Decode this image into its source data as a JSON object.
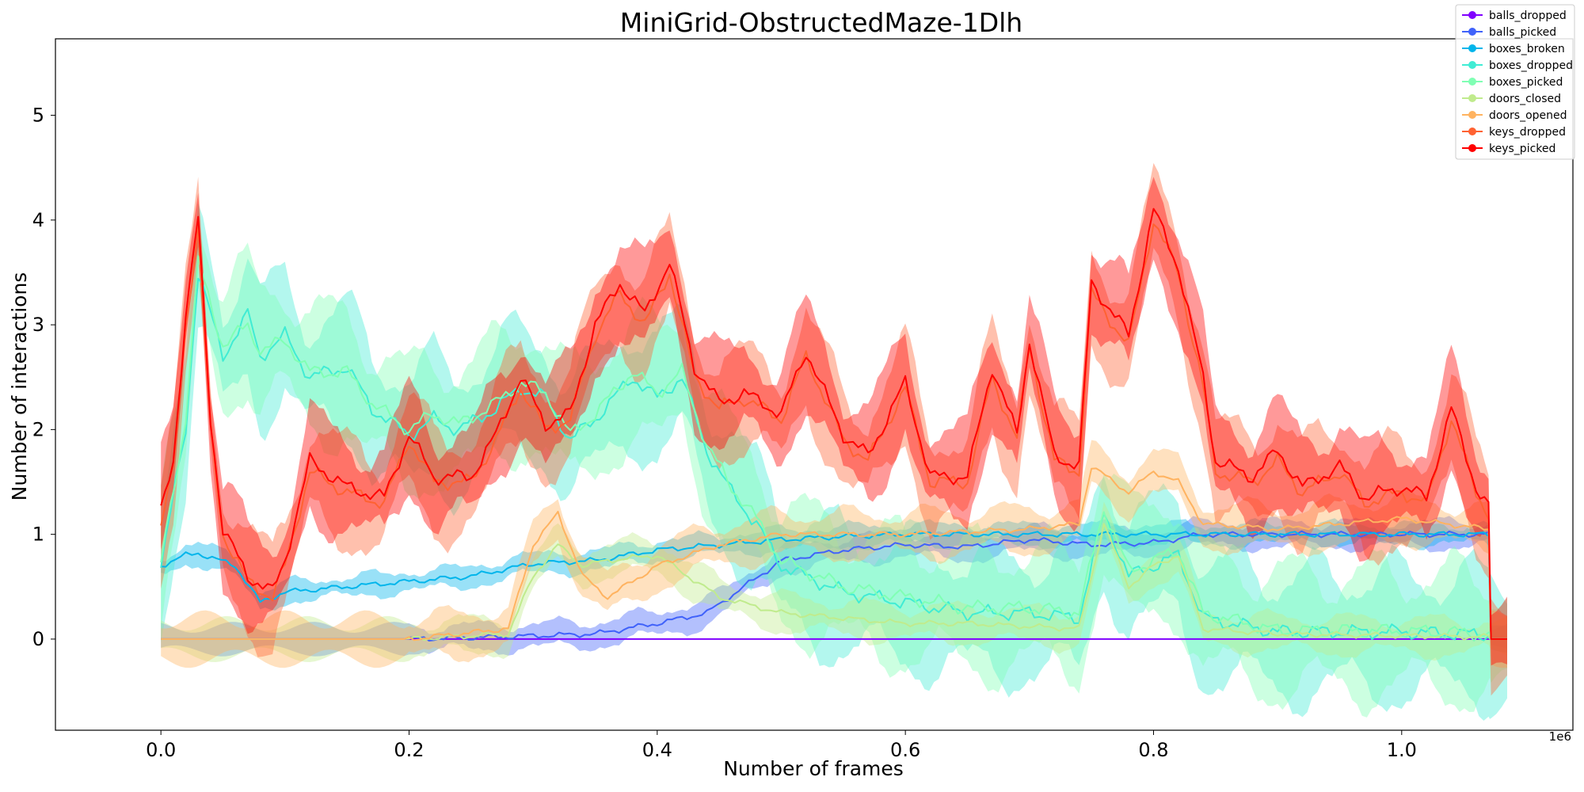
{
  "chart_data": {
    "type": "line",
    "title": "MiniGrid-ObstructedMaze-1Dlh",
    "xlabel": "Number of frames",
    "ylabel": "Number of interactions",
    "x_offset_label": "1e6",
    "xlim": [
      -0.085,
      1.138
    ],
    "ylim": [
      -0.87,
      5.73
    ],
    "x_ticks": [
      0.0,
      0.2,
      0.4,
      0.6,
      0.8,
      1.0
    ],
    "x_tick_labels": [
      "0.0",
      "0.2",
      "0.4",
      "0.6",
      "0.8",
      "1.0"
    ],
    "y_ticks": [
      0,
      1,
      2,
      3,
      4,
      5
    ],
    "y_tick_labels": [
      "0",
      "1",
      "2",
      "3",
      "4",
      "5"
    ],
    "grid": false,
    "legend_position": "top-right",
    "series": [
      {
        "name": "balls_dropped",
        "color": "#8000ff",
        "points": [
          [
            0.0,
            0.0
          ],
          [
            1.085,
            0.0
          ]
        ],
        "band": 0.0
      },
      {
        "name": "balls_picked",
        "color": "#4062fa",
        "points": [
          [
            0.0,
            0.0
          ],
          [
            0.2,
            0.0
          ],
          [
            0.3,
            0.03
          ],
          [
            0.35,
            0.05
          ],
          [
            0.4,
            0.15
          ],
          [
            0.44,
            0.25
          ],
          [
            0.47,
            0.5
          ],
          [
            0.5,
            0.75
          ],
          [
            0.55,
            0.85
          ],
          [
            0.6,
            0.9
          ],
          [
            0.65,
            0.88
          ],
          [
            0.7,
            0.95
          ],
          [
            0.75,
            0.9
          ],
          [
            0.8,
            0.92
          ],
          [
            0.84,
            1.0
          ],
          [
            1.07,
            1.0
          ],
          [
            1.072,
            0.0
          ],
          [
            1.085,
            0.0
          ]
        ],
        "band": 0.15
      },
      {
        "name": "boxes_broken",
        "color": "#00b5eb",
        "points": [
          [
            0.0,
            0.7
          ],
          [
            0.02,
            0.8
          ],
          [
            0.03,
            0.82
          ],
          [
            0.06,
            0.7
          ],
          [
            0.08,
            0.35
          ],
          [
            0.1,
            0.45
          ],
          [
            0.15,
            0.5
          ],
          [
            0.2,
            0.55
          ],
          [
            0.25,
            0.6
          ],
          [
            0.3,
            0.72
          ],
          [
            0.35,
            0.75
          ],
          [
            0.4,
            0.85
          ],
          [
            0.45,
            0.9
          ],
          [
            0.5,
            0.95
          ],
          [
            0.55,
            0.98
          ],
          [
            0.6,
            1.0
          ],
          [
            0.75,
            1.0
          ],
          [
            1.07,
            1.0
          ],
          [
            1.072,
            0.0
          ],
          [
            1.085,
            0.0
          ]
        ],
        "band": 0.12
      },
      {
        "name": "boxes_dropped",
        "color": "#40ecd4",
        "points": [
          [
            0.0,
            0.7
          ],
          [
            0.02,
            2.0
          ],
          [
            0.03,
            3.5
          ],
          [
            0.05,
            2.7
          ],
          [
            0.07,
            3.1
          ],
          [
            0.08,
            2.7
          ],
          [
            0.1,
            2.9
          ],
          [
            0.12,
            2.5
          ],
          [
            0.15,
            2.6
          ],
          [
            0.17,
            2.2
          ],
          [
            0.2,
            1.95
          ],
          [
            0.22,
            2.1
          ],
          [
            0.24,
            2.0
          ],
          [
            0.27,
            2.2
          ],
          [
            0.29,
            2.4
          ],
          [
            0.31,
            2.3
          ],
          [
            0.33,
            1.9
          ],
          [
            0.35,
            2.1
          ],
          [
            0.38,
            2.5
          ],
          [
            0.4,
            2.3
          ],
          [
            0.42,
            2.5
          ],
          [
            0.44,
            1.8
          ],
          [
            0.46,
            1.4
          ],
          [
            0.48,
            1.1
          ],
          [
            0.5,
            0.7
          ],
          [
            0.55,
            0.45
          ],
          [
            0.6,
            0.35
          ],
          [
            0.65,
            0.25
          ],
          [
            0.7,
            0.25
          ],
          [
            0.74,
            0.2
          ],
          [
            0.76,
            1.2
          ],
          [
            0.78,
            0.6
          ],
          [
            0.8,
            0.7
          ],
          [
            0.82,
            0.8
          ],
          [
            0.84,
            0.2
          ],
          [
            0.9,
            0.07
          ],
          [
            1.0,
            0.07
          ],
          [
            1.07,
            0.04
          ],
          [
            1.072,
            0.0
          ],
          [
            1.085,
            0.0
          ]
        ],
        "band": 0.7
      },
      {
        "name": "boxes_picked",
        "color": "#80ffb4",
        "points": [
          [
            0.0,
            0.72
          ],
          [
            0.02,
            2.1
          ],
          [
            0.03,
            3.6
          ],
          [
            0.05,
            2.8
          ],
          [
            0.07,
            3.0
          ],
          [
            0.08,
            2.75
          ],
          [
            0.1,
            2.85
          ],
          [
            0.12,
            2.55
          ],
          [
            0.15,
            2.55
          ],
          [
            0.17,
            2.25
          ],
          [
            0.2,
            2.0
          ],
          [
            0.22,
            2.15
          ],
          [
            0.24,
            2.05
          ],
          [
            0.27,
            2.25
          ],
          [
            0.29,
            2.45
          ],
          [
            0.31,
            2.35
          ],
          [
            0.33,
            1.95
          ],
          [
            0.35,
            2.15
          ],
          [
            0.38,
            2.55
          ],
          [
            0.4,
            2.35
          ],
          [
            0.42,
            2.55
          ],
          [
            0.44,
            1.85
          ],
          [
            0.46,
            1.45
          ],
          [
            0.48,
            1.15
          ],
          [
            0.5,
            0.75
          ],
          [
            0.55,
            0.5
          ],
          [
            0.6,
            0.4
          ],
          [
            0.65,
            0.3
          ],
          [
            0.7,
            0.3
          ],
          [
            0.74,
            0.25
          ],
          [
            0.76,
            1.25
          ],
          [
            0.78,
            0.65
          ],
          [
            0.8,
            0.75
          ],
          [
            0.82,
            0.85
          ],
          [
            0.84,
            0.25
          ],
          [
            0.9,
            0.08
          ],
          [
            1.0,
            0.08
          ],
          [
            1.07,
            0.05
          ],
          [
            1.072,
            0.0
          ],
          [
            1.085,
            0.0
          ]
        ],
        "band": 0.7
      },
      {
        "name": "doors_closed",
        "color": "#c0eb8d",
        "points": [
          [
            0.0,
            0.0
          ],
          [
            0.2,
            0.0
          ],
          [
            0.28,
            0.05
          ],
          [
            0.3,
            0.6
          ],
          [
            0.32,
            0.9
          ],
          [
            0.34,
            0.7
          ],
          [
            0.36,
            0.75
          ],
          [
            0.4,
            0.8
          ],
          [
            0.45,
            0.4
          ],
          [
            0.5,
            0.25
          ],
          [
            0.55,
            0.2
          ],
          [
            0.6,
            0.15
          ],
          [
            0.65,
            0.15
          ],
          [
            0.7,
            0.12
          ],
          [
            0.74,
            0.1
          ],
          [
            0.76,
            1.1
          ],
          [
            0.78,
            0.5
          ],
          [
            0.8,
            0.7
          ],
          [
            0.82,
            0.8
          ],
          [
            0.84,
            0.1
          ],
          [
            0.9,
            0.05
          ],
          [
            1.07,
            0.02
          ],
          [
            1.072,
            0.0
          ],
          [
            1.085,
            0.0
          ]
        ],
        "band": 0.2
      },
      {
        "name": "doors_opened",
        "color": "#ffb360",
        "points": [
          [
            0.0,
            0.0
          ],
          [
            0.2,
            0.0
          ],
          [
            0.28,
            0.1
          ],
          [
            0.3,
            0.9
          ],
          [
            0.32,
            1.2
          ],
          [
            0.34,
            0.6
          ],
          [
            0.36,
            0.4
          ],
          [
            0.4,
            0.7
          ],
          [
            0.45,
            0.9
          ],
          [
            0.5,
            1.0
          ],
          [
            0.55,
            1.0
          ],
          [
            0.6,
            1.0
          ],
          [
            0.7,
            1.05
          ],
          [
            0.74,
            1.1
          ],
          [
            0.75,
            1.65
          ],
          [
            0.78,
            1.4
          ],
          [
            0.8,
            1.6
          ],
          [
            0.82,
            1.5
          ],
          [
            0.84,
            1.1
          ],
          [
            0.9,
            1.05
          ],
          [
            0.95,
            1.1
          ],
          [
            1.0,
            1.15
          ],
          [
            1.07,
            1.05
          ],
          [
            1.072,
            0.0
          ],
          [
            1.085,
            0.0
          ]
        ],
        "band": 0.25
      },
      {
        "name": "keys_dropped",
        "color": "#ff6232",
        "points": [
          [
            0.0,
            1.1
          ],
          [
            0.01,
            1.6
          ],
          [
            0.02,
            3.0
          ],
          [
            0.03,
            3.9
          ],
          [
            0.04,
            2.0
          ],
          [
            0.05,
            1.0
          ],
          [
            0.07,
            0.55
          ],
          [
            0.09,
            0.4
          ],
          [
            0.1,
            0.7
          ],
          [
            0.12,
            1.6
          ],
          [
            0.15,
            1.4
          ],
          [
            0.18,
            1.3
          ],
          [
            0.2,
            1.9
          ],
          [
            0.22,
            1.5
          ],
          [
            0.25,
            1.5
          ],
          [
            0.27,
            1.9
          ],
          [
            0.29,
            2.4
          ],
          [
            0.31,
            2.0
          ],
          [
            0.33,
            2.1
          ],
          [
            0.35,
            2.9
          ],
          [
            0.37,
            3.3
          ],
          [
            0.39,
            3.0
          ],
          [
            0.41,
            3.5
          ],
          [
            0.43,
            2.5
          ],
          [
            0.45,
            2.2
          ],
          [
            0.47,
            2.3
          ],
          [
            0.5,
            2.1
          ],
          [
            0.52,
            2.7
          ],
          [
            0.55,
            1.9
          ],
          [
            0.57,
            1.7
          ],
          [
            0.6,
            2.4
          ],
          [
            0.62,
            1.5
          ],
          [
            0.65,
            1.5
          ],
          [
            0.67,
            2.5
          ],
          [
            0.69,
            1.9
          ],
          [
            0.7,
            2.8
          ],
          [
            0.72,
            1.7
          ],
          [
            0.74,
            1.6
          ],
          [
            0.75,
            3.3
          ],
          [
            0.78,
            2.8
          ],
          [
            0.8,
            4.0
          ],
          [
            0.82,
            3.5
          ],
          [
            0.84,
            2.4
          ],
          [
            0.85,
            1.6
          ],
          [
            0.88,
            1.5
          ],
          [
            0.9,
            1.7
          ],
          [
            0.92,
            1.4
          ],
          [
            0.95,
            1.6
          ],
          [
            0.97,
            1.3
          ],
          [
            1.0,
            1.4
          ],
          [
            1.02,
            1.3
          ],
          [
            1.04,
            2.1
          ],
          [
            1.06,
            1.4
          ],
          [
            1.07,
            1.2
          ],
          [
            1.072,
            0.0
          ],
          [
            1.085,
            0.0
          ]
        ],
        "band": 0.55
      },
      {
        "name": "keys_picked",
        "color": "#ff0000",
        "points": [
          [
            0.0,
            1.2
          ],
          [
            0.01,
            1.7
          ],
          [
            0.02,
            3.1
          ],
          [
            0.03,
            4.0
          ],
          [
            0.04,
            2.1
          ],
          [
            0.05,
            1.05
          ],
          [
            0.07,
            0.6
          ],
          [
            0.09,
            0.45
          ],
          [
            0.1,
            0.75
          ],
          [
            0.12,
            1.7
          ],
          [
            0.15,
            1.45
          ],
          [
            0.18,
            1.35
          ],
          [
            0.2,
            1.95
          ],
          [
            0.22,
            1.55
          ],
          [
            0.25,
            1.55
          ],
          [
            0.27,
            1.95
          ],
          [
            0.29,
            2.5
          ],
          [
            0.31,
            2.05
          ],
          [
            0.33,
            2.15
          ],
          [
            0.35,
            3.0
          ],
          [
            0.37,
            3.4
          ],
          [
            0.39,
            3.1
          ],
          [
            0.41,
            3.6
          ],
          [
            0.43,
            2.6
          ],
          [
            0.45,
            2.25
          ],
          [
            0.47,
            2.35
          ],
          [
            0.5,
            2.15
          ],
          [
            0.52,
            2.75
          ],
          [
            0.55,
            1.95
          ],
          [
            0.57,
            1.75
          ],
          [
            0.6,
            2.45
          ],
          [
            0.62,
            1.55
          ],
          [
            0.65,
            1.55
          ],
          [
            0.67,
            2.6
          ],
          [
            0.69,
            1.95
          ],
          [
            0.7,
            2.85
          ],
          [
            0.72,
            1.75
          ],
          [
            0.74,
            1.65
          ],
          [
            0.75,
            3.4
          ],
          [
            0.78,
            2.9
          ],
          [
            0.8,
            4.1
          ],
          [
            0.82,
            3.55
          ],
          [
            0.84,
            2.5
          ],
          [
            0.85,
            1.7
          ],
          [
            0.88,
            1.55
          ],
          [
            0.9,
            1.8
          ],
          [
            0.92,
            1.45
          ],
          [
            0.95,
            1.65
          ],
          [
            0.97,
            1.35
          ],
          [
            1.0,
            1.45
          ],
          [
            1.02,
            1.35
          ],
          [
            1.04,
            2.2
          ],
          [
            1.06,
            1.45
          ],
          [
            1.07,
            1.25
          ],
          [
            1.072,
            0.0
          ],
          [
            1.085,
            0.0
          ]
        ],
        "band": 0.55
      }
    ]
  }
}
